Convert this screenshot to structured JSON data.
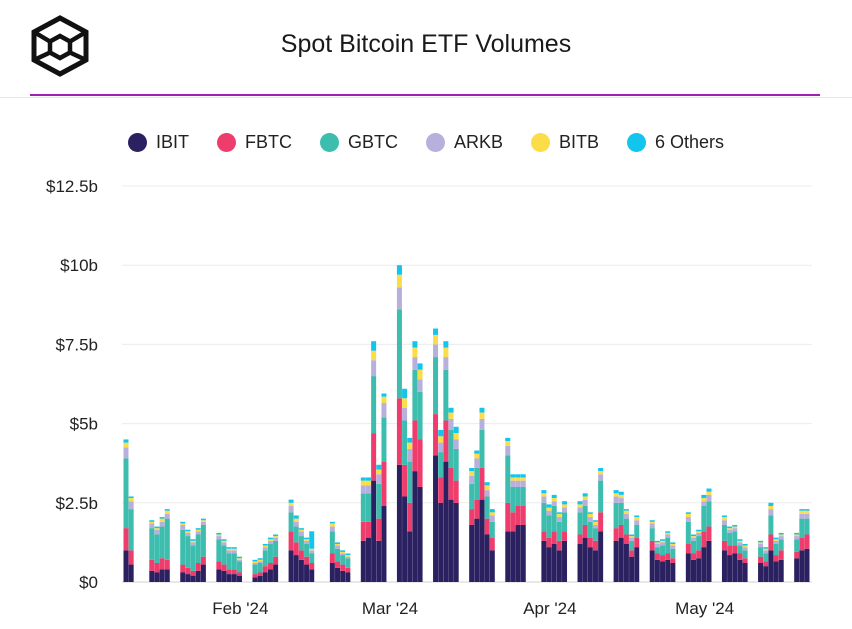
{
  "header": {
    "title": "Spot Bitcoin ETF Volumes",
    "logo_icon": "hexagon-cube-icon"
  },
  "colors": {
    "accent": "#a21fb6",
    "IBIT": "#2b2060",
    "FBTC": "#ee3d6c",
    "GBTC": "#3dbdae",
    "ARKB": "#b8b0dc",
    "BITB": "#fbdd4a",
    "Others": "#12c5ec"
  },
  "chart_data": {
    "type": "bar",
    "stacked": true,
    "title": "Spot Bitcoin ETF Volumes",
    "xlabel": "",
    "ylabel": "",
    "ylim": [
      0,
      12.5
    ],
    "y_unit": "billion USD",
    "y_ticks": [
      0,
      2.5,
      5,
      7.5,
      10,
      12.5
    ],
    "y_tick_labels": [
      "$0",
      "$2.5b",
      "$5b",
      "$7.5b",
      "$10b",
      "$12.5b"
    ],
    "x_tick_labels": [
      {
        "label": "Feb '24",
        "at": "2024-02-01"
      },
      {
        "label": "Mar '24",
        "at": "2024-03-01"
      },
      {
        "label": "Apr '24",
        "at": "2024-04-01"
      },
      {
        "label": "May '24",
        "at": "2024-05-01"
      }
    ],
    "legend": "top-center",
    "grid": "horizontal",
    "x": [
      "2024-01-11",
      "2024-01-12",
      "2024-01-16",
      "2024-01-17",
      "2024-01-18",
      "2024-01-19",
      "2024-01-22",
      "2024-01-23",
      "2024-01-24",
      "2024-01-25",
      "2024-01-26",
      "2024-01-29",
      "2024-01-30",
      "2024-01-31",
      "2024-02-01",
      "2024-02-02",
      "2024-02-05",
      "2024-02-06",
      "2024-02-07",
      "2024-02-08",
      "2024-02-09",
      "2024-02-12",
      "2024-02-13",
      "2024-02-14",
      "2024-02-15",
      "2024-02-16",
      "2024-02-20",
      "2024-02-21",
      "2024-02-22",
      "2024-02-23",
      "2024-02-26",
      "2024-02-27",
      "2024-02-28",
      "2024-02-29",
      "2024-03-01",
      "2024-03-04",
      "2024-03-05",
      "2024-03-06",
      "2024-03-07",
      "2024-03-08",
      "2024-03-11",
      "2024-03-12",
      "2024-03-13",
      "2024-03-14",
      "2024-03-15",
      "2024-03-18",
      "2024-03-19",
      "2024-03-20",
      "2024-03-21",
      "2024-03-22",
      "2024-03-25",
      "2024-03-26",
      "2024-03-27",
      "2024-03-28",
      "2024-04-01",
      "2024-04-02",
      "2024-04-03",
      "2024-04-04",
      "2024-04-05",
      "2024-04-08",
      "2024-04-09",
      "2024-04-10",
      "2024-04-11",
      "2024-04-12",
      "2024-04-15",
      "2024-04-16",
      "2024-04-17",
      "2024-04-18",
      "2024-04-19",
      "2024-04-22",
      "2024-04-23",
      "2024-04-24",
      "2024-04-25",
      "2024-04-26",
      "2024-04-29",
      "2024-04-30",
      "2024-05-01",
      "2024-05-02",
      "2024-05-03",
      "2024-05-06",
      "2024-05-07",
      "2024-05-08",
      "2024-05-09",
      "2024-05-10",
      "2024-05-13",
      "2024-05-14",
      "2024-05-15",
      "2024-05-16",
      "2024-05-17",
      "2024-05-20",
      "2024-05-21",
      "2024-05-22"
    ],
    "series": [
      {
        "name": "IBIT",
        "color": "#2b2060",
        "values": [
          1.0,
          0.55,
          0.35,
          0.3,
          0.4,
          0.4,
          0.3,
          0.25,
          0.2,
          0.35,
          0.55,
          0.4,
          0.35,
          0.25,
          0.25,
          0.2,
          0.15,
          0.2,
          0.3,
          0.4,
          0.55,
          1.0,
          0.85,
          0.7,
          0.55,
          0.4,
          0.6,
          0.45,
          0.35,
          0.3,
          1.3,
          1.4,
          3.2,
          1.3,
          2.4,
          3.7,
          2.7,
          1.6,
          3.5,
          3.0,
          4.0,
          2.5,
          3.8,
          2.6,
          2.5,
          1.8,
          2.0,
          2.6,
          1.5,
          1.0,
          1.6,
          1.6,
          1.8,
          1.8,
          1.3,
          1.1,
          1.2,
          1.0,
          1.3,
          1.2,
          1.4,
          1.1,
          1.0,
          1.6,
          1.3,
          1.4,
          1.2,
          0.8,
          1.1,
          1.0,
          0.7,
          0.65,
          0.7,
          0.6,
          0.9,
          0.7,
          0.75,
          1.1,
          1.3,
          1.0,
          0.85,
          0.9,
          0.7,
          0.6,
          0.6,
          0.5,
          1.0,
          0.65,
          0.7,
          0.75,
          1.0,
          1.05
        ]
      },
      {
        "name": "FBTC",
        "color": "#ee3d6c",
        "values": [
          0.7,
          0.45,
          0.35,
          0.3,
          0.35,
          0.3,
          0.25,
          0.2,
          0.15,
          0.25,
          0.25,
          0.25,
          0.2,
          0.15,
          0.15,
          0.1,
          0.1,
          0.1,
          0.2,
          0.2,
          0.25,
          0.6,
          0.4,
          0.3,
          0.25,
          0.2,
          0.3,
          0.2,
          0.2,
          0.15,
          0.6,
          0.5,
          1.5,
          0.7,
          1.4,
          2.1,
          1.0,
          0.9,
          1.6,
          1.5,
          1.3,
          0.8,
          1.3,
          1.0,
          0.7,
          0.5,
          0.6,
          1.0,
          0.5,
          0.4,
          0.9,
          0.6,
          0.6,
          0.6,
          0.3,
          0.3,
          0.4,
          0.3,
          0.3,
          0.3,
          0.4,
          0.3,
          0.3,
          0.6,
          0.4,
          0.4,
          0.3,
          0.2,
          0.3,
          0.3,
          0.2,
          0.2,
          0.2,
          0.15,
          0.3,
          0.2,
          0.25,
          0.5,
          0.45,
          0.3,
          0.3,
          0.25,
          0.2,
          0.15,
          0.2,
          0.15,
          0.5,
          0.2,
          0.3,
          0.2,
          0.4,
          0.45
        ]
      },
      {
        "name": "GBTC",
        "color": "#3dbdae",
        "values": [
          2.2,
          1.3,
          1.0,
          0.9,
          1.0,
          1.3,
          1.1,
          1.0,
          0.8,
          0.9,
          1.0,
          0.7,
          0.6,
          0.5,
          0.5,
          0.35,
          0.3,
          0.3,
          0.5,
          0.6,
          0.5,
          0.6,
          0.5,
          0.45,
          0.4,
          0.3,
          0.7,
          0.4,
          0.3,
          0.3,
          0.9,
          0.9,
          1.8,
          1.1,
          1.4,
          2.8,
          1.4,
          1.3,
          1.6,
          1.5,
          1.8,
          0.8,
          1.6,
          1.2,
          1.0,
          0.8,
          1.0,
          1.2,
          0.7,
          0.5,
          1.5,
          0.8,
          0.6,
          0.6,
          0.9,
          0.7,
          0.8,
          0.6,
          0.6,
          0.7,
          0.6,
          0.5,
          0.4,
          1.0,
          0.8,
          0.7,
          0.5,
          0.3,
          0.4,
          0.4,
          0.2,
          0.3,
          0.5,
          0.3,
          0.7,
          0.4,
          0.45,
          0.8,
          0.8,
          0.5,
          0.4,
          0.45,
          0.25,
          0.25,
          0.3,
          0.25,
          0.6,
          0.35,
          0.35,
          0.4,
          0.6,
          0.5
        ]
      },
      {
        "name": "ARKB",
        "color": "#b8b0dc",
        "values": [
          0.35,
          0.25,
          0.15,
          0.15,
          0.15,
          0.15,
          0.15,
          0.1,
          0.1,
          0.1,
          0.1,
          0.1,
          0.1,
          0.1,
          0.1,
          0.05,
          0.05,
          0.05,
          0.1,
          0.1,
          0.1,
          0.2,
          0.15,
          0.15,
          0.1,
          0.1,
          0.15,
          0.1,
          0.05,
          0.05,
          0.25,
          0.25,
          0.5,
          0.3,
          0.45,
          0.7,
          0.4,
          0.4,
          0.4,
          0.4,
          0.4,
          0.3,
          0.4,
          0.35,
          0.3,
          0.25,
          0.3,
          0.35,
          0.2,
          0.2,
          0.3,
          0.2,
          0.2,
          0.2,
          0.2,
          0.15,
          0.15,
          0.15,
          0.15,
          0.15,
          0.2,
          0.15,
          0.1,
          0.2,
          0.2,
          0.15,
          0.15,
          0.1,
          0.15,
          0.15,
          0.1,
          0.1,
          0.1,
          0.1,
          0.15,
          0.1,
          0.1,
          0.15,
          0.2,
          0.15,
          0.1,
          0.1,
          0.1,
          0.1,
          0.1,
          0.1,
          0.2,
          0.1,
          0.1,
          0.1,
          0.15,
          0.15
        ]
      },
      {
        "name": "BITB",
        "color": "#fbdd4a",
        "values": [
          0.15,
          0.1,
          0.05,
          0.05,
          0.1,
          0.1,
          0.05,
          0.05,
          0.05,
          0.05,
          0.05,
          0.05,
          0.05,
          0.05,
          0.05,
          0.05,
          0.05,
          0.05,
          0.05,
          0.05,
          0.05,
          0.1,
          0.1,
          0.05,
          0.05,
          0.05,
          0.1,
          0.05,
          0.05,
          0.05,
          0.15,
          0.15,
          0.3,
          0.15,
          0.2,
          0.4,
          0.3,
          0.2,
          0.3,
          0.3,
          0.3,
          0.2,
          0.3,
          0.2,
          0.2,
          0.15,
          0.15,
          0.2,
          0.15,
          0.1,
          0.15,
          0.1,
          0.1,
          0.1,
          0.1,
          0.1,
          0.1,
          0.1,
          0.1,
          0.1,
          0.1,
          0.1,
          0.1,
          0.1,
          0.1,
          0.1,
          0.1,
          0.05,
          0.1,
          0.05,
          0.05,
          0.05,
          0.05,
          0.05,
          0.1,
          0.05,
          0.05,
          0.1,
          0.1,
          0.1,
          0.05,
          0.05,
          0.05,
          0.05,
          0.05,
          0.05,
          0.1,
          0.05,
          0.05,
          0.05,
          0.1,
          0.1
        ]
      },
      {
        "name": "6 Others",
        "color": "#12c5ec",
        "values": [
          0.1,
          0.05,
          0.05,
          0.05,
          0.05,
          0.05,
          0.05,
          0.05,
          0.05,
          0.05,
          0.05,
          0.05,
          0.05,
          0.05,
          0.05,
          0.05,
          0.05,
          0.05,
          0.05,
          0.05,
          0.05,
          0.1,
          0.1,
          0.05,
          0.05,
          0.55,
          0.05,
          0.05,
          0.05,
          0.05,
          0.1,
          0.1,
          0.3,
          0.15,
          0.1,
          0.3,
          0.3,
          0.15,
          0.2,
          0.2,
          0.2,
          0.2,
          0.2,
          0.15,
          0.2,
          0.1,
          0.1,
          0.15,
          0.1,
          0.1,
          0.1,
          0.1,
          0.1,
          0.1,
          0.1,
          0.1,
          0.1,
          0.05,
          0.1,
          0.1,
          0.1,
          0.05,
          0.05,
          0.1,
          0.1,
          0.1,
          0.05,
          0.05,
          0.05,
          0.05,
          0.05,
          0.05,
          0.05,
          0.05,
          0.05,
          0.05,
          0.05,
          0.1,
          0.1,
          0.05,
          0.05,
          0.05,
          0.05,
          0.05,
          0.05,
          0.05,
          0.1,
          0.05,
          0.05,
          0.05,
          0.05,
          0.05
        ]
      }
    ]
  }
}
